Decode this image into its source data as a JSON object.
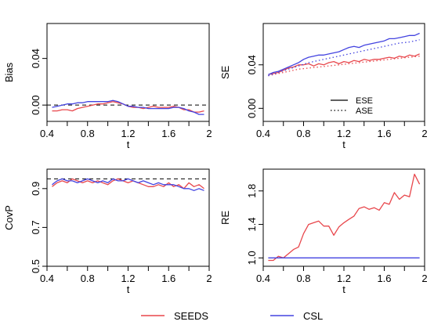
{
  "colors": {
    "SEEDS": "#e8474c",
    "CSL": "#4343e0",
    "reference": "#000000"
  },
  "legend": {
    "entries": [
      {
        "name": "SEEDS",
        "color": "#e8474c",
        "style": "solid"
      },
      {
        "name": "CSL",
        "color": "#4343e0",
        "style": "solid"
      }
    ],
    "placement": "bottom"
  },
  "chart_data": [
    {
      "type": "line",
      "id": "bias",
      "xlabel": "t",
      "ylabel": "Bias",
      "xlim": [
        0.4,
        2.0
      ],
      "ylim": [
        -0.014,
        0.07
      ],
      "xticks": [
        0.4,
        0.8,
        1.2,
        1.6,
        2.0
      ],
      "xtick_labels": [
        "0.4",
        "0.8",
        "1.2",
        "1.6",
        "2"
      ],
      "yticks": [
        0.0,
        0.04
      ],
      "ytick_labels": [
        "0.00",
        "0.04"
      ],
      "reference_lines": [
        {
          "y": 0.0,
          "style": "dashed"
        }
      ],
      "series": [
        {
          "name": "SEEDS",
          "x": [
            0.45,
            0.5,
            0.55,
            0.6,
            0.65,
            0.7,
            0.75,
            0.8,
            0.85,
            0.9,
            0.95,
            1.0,
            1.05,
            1.1,
            1.15,
            1.2,
            1.25,
            1.3,
            1.35,
            1.4,
            1.45,
            1.5,
            1.55,
            1.6,
            1.65,
            1.7,
            1.75,
            1.8,
            1.85,
            1.9,
            1.95
          ],
          "y": [
            -0.005,
            -0.005,
            -0.004,
            -0.004,
            -0.005,
            -0.003,
            -0.002,
            -0.001,
            0.0,
            0.001,
            0.001,
            0.002,
            0.003,
            0.002,
            0.001,
            -0.001,
            -0.002,
            -0.002,
            -0.003,
            -0.002,
            -0.001,
            -0.002,
            -0.002,
            -0.002,
            -0.001,
            -0.002,
            -0.004,
            -0.004,
            -0.006,
            -0.006,
            -0.005
          ]
        },
        {
          "name": "CSL",
          "x": [
            0.45,
            0.5,
            0.55,
            0.6,
            0.65,
            0.7,
            0.75,
            0.8,
            0.85,
            0.9,
            0.95,
            1.0,
            1.05,
            1.1,
            1.15,
            1.2,
            1.25,
            1.3,
            1.35,
            1.4,
            1.45,
            1.5,
            1.55,
            1.6,
            1.65,
            1.7,
            1.75,
            1.8,
            1.85,
            1.9,
            1.95
          ],
          "y": [
            -0.002,
            -0.001,
            0.0,
            0.001,
            0.001,
            0.002,
            0.002,
            0.003,
            0.003,
            0.003,
            0.003,
            0.003,
            0.004,
            0.003,
            0.001,
            -0.001,
            -0.001,
            -0.002,
            -0.002,
            -0.003,
            -0.003,
            -0.003,
            -0.003,
            -0.003,
            -0.002,
            -0.002,
            -0.003,
            -0.005,
            -0.006,
            -0.008,
            -0.008
          ]
        }
      ]
    },
    {
      "type": "line",
      "id": "se",
      "xlabel": "t",
      "ylabel": "SE",
      "xlim": [
        0.4,
        2.0
      ],
      "ylim": [
        -0.012,
        0.078
      ],
      "xticks": [
        0.4,
        0.8,
        1.2,
        1.6,
        2.0
      ],
      "xtick_labels": [
        "0.4",
        "0.8",
        "1.2",
        "1.6",
        "2"
      ],
      "yticks": [
        0.0,
        0.04
      ],
      "ytick_labels": [
        "0.00",
        "0.04"
      ],
      "legend": {
        "entries": [
          {
            "name": "ESE",
            "style": "solid"
          },
          {
            "name": "ASE",
            "style": "dotted"
          }
        ],
        "placement": "bottom-right"
      },
      "series": [
        {
          "name": "SEEDS ESE",
          "style": "solid",
          "color": "#e8474c",
          "x": [
            0.45,
            0.5,
            0.55,
            0.6,
            0.65,
            0.7,
            0.75,
            0.8,
            0.85,
            0.9,
            0.95,
            1.0,
            1.05,
            1.1,
            1.15,
            1.2,
            1.25,
            1.3,
            1.35,
            1.4,
            1.45,
            1.5,
            1.55,
            1.6,
            1.65,
            1.7,
            1.75,
            1.8,
            1.85,
            1.9,
            1.95
          ],
          "y": [
            0.031,
            0.032,
            0.033,
            0.035,
            0.037,
            0.038,
            0.04,
            0.04,
            0.041,
            0.039,
            0.041,
            0.04,
            0.042,
            0.043,
            0.041,
            0.043,
            0.042,
            0.044,
            0.043,
            0.045,
            0.044,
            0.045,
            0.045,
            0.046,
            0.047,
            0.046,
            0.048,
            0.047,
            0.049,
            0.048,
            0.05
          ]
        },
        {
          "name": "CSL ESE",
          "style": "solid",
          "color": "#4343e0",
          "x": [
            0.45,
            0.5,
            0.55,
            0.6,
            0.65,
            0.7,
            0.75,
            0.8,
            0.85,
            0.9,
            0.95,
            1.0,
            1.05,
            1.1,
            1.15,
            1.2,
            1.25,
            1.3,
            1.35,
            1.4,
            1.45,
            1.5,
            1.55,
            1.6,
            1.65,
            1.7,
            1.75,
            1.8,
            1.85,
            1.9,
            1.95
          ],
          "y": [
            0.031,
            0.033,
            0.034,
            0.036,
            0.038,
            0.04,
            0.042,
            0.045,
            0.047,
            0.048,
            0.049,
            0.049,
            0.05,
            0.051,
            0.052,
            0.054,
            0.056,
            0.057,
            0.056,
            0.058,
            0.059,
            0.06,
            0.061,
            0.062,
            0.064,
            0.064,
            0.065,
            0.066,
            0.067,
            0.067,
            0.069
          ]
        },
        {
          "name": "SEEDS ASE",
          "style": "dotted",
          "color": "#e8474c",
          "x": [
            0.45,
            0.55,
            0.65,
            0.75,
            0.85,
            0.95,
            1.05,
            1.15,
            1.25,
            1.35,
            1.45,
            1.55,
            1.65,
            1.75,
            1.85,
            1.95
          ],
          "y": [
            0.03,
            0.032,
            0.034,
            0.036,
            0.037,
            0.038,
            0.039,
            0.04,
            0.041,
            0.042,
            0.043,
            0.044,
            0.045,
            0.046,
            0.047,
            0.048
          ]
        },
        {
          "name": "CSL ASE",
          "style": "dotted",
          "color": "#4343e0",
          "x": [
            0.45,
            0.55,
            0.65,
            0.75,
            0.85,
            0.95,
            1.05,
            1.15,
            1.25,
            1.35,
            1.45,
            1.55,
            1.65,
            1.75,
            1.85,
            1.95
          ],
          "y": [
            0.03,
            0.033,
            0.036,
            0.039,
            0.042,
            0.044,
            0.046,
            0.048,
            0.05,
            0.052,
            0.054,
            0.056,
            0.058,
            0.06,
            0.061,
            0.063
          ]
        }
      ]
    },
    {
      "type": "line",
      "id": "covp",
      "xlabel": "t",
      "ylabel": "CovP",
      "xlim": [
        0.4,
        2.0
      ],
      "ylim": [
        0.5,
        1.0
      ],
      "xticks": [
        0.4,
        0.8,
        1.2,
        1.6,
        2.0
      ],
      "xtick_labels": [
        "0.4",
        "0.8",
        "1.2",
        "1.6",
        "2"
      ],
      "yticks": [
        0.5,
        0.7,
        0.9
      ],
      "ytick_labels": [
        "0.5",
        "0.7",
        "0.9"
      ],
      "reference_lines": [
        {
          "y": 0.95,
          "style": "dashed"
        }
      ],
      "series": [
        {
          "name": "SEEDS",
          "x": [
            0.45,
            0.5,
            0.55,
            0.6,
            0.65,
            0.7,
            0.75,
            0.8,
            0.85,
            0.9,
            0.95,
            1.0,
            1.05,
            1.1,
            1.15,
            1.2,
            1.25,
            1.3,
            1.35,
            1.4,
            1.45,
            1.5,
            1.55,
            1.6,
            1.65,
            1.7,
            1.75,
            1.8,
            1.85,
            1.9,
            1.95
          ],
          "y": [
            0.91,
            0.93,
            0.94,
            0.93,
            0.95,
            0.94,
            0.93,
            0.94,
            0.93,
            0.94,
            0.93,
            0.92,
            0.94,
            0.95,
            0.94,
            0.93,
            0.94,
            0.93,
            0.92,
            0.91,
            0.91,
            0.92,
            0.91,
            0.93,
            0.91,
            0.92,
            0.9,
            0.93,
            0.91,
            0.92,
            0.9
          ]
        },
        {
          "name": "CSL",
          "x": [
            0.45,
            0.5,
            0.55,
            0.6,
            0.65,
            0.7,
            0.75,
            0.8,
            0.85,
            0.9,
            0.95,
            1.0,
            1.05,
            1.1,
            1.15,
            1.2,
            1.25,
            1.3,
            1.35,
            1.4,
            1.45,
            1.5,
            1.55,
            1.6,
            1.65,
            1.7,
            1.75,
            1.8,
            1.85,
            1.9,
            1.95
          ],
          "y": [
            0.92,
            0.94,
            0.95,
            0.94,
            0.94,
            0.93,
            0.94,
            0.95,
            0.94,
            0.93,
            0.94,
            0.93,
            0.95,
            0.94,
            0.94,
            0.95,
            0.94,
            0.93,
            0.94,
            0.93,
            0.92,
            0.93,
            0.92,
            0.92,
            0.92,
            0.91,
            0.9,
            0.9,
            0.89,
            0.9,
            0.89
          ]
        }
      ]
    },
    {
      "type": "line",
      "id": "re",
      "xlabel": "t",
      "ylabel": "RE",
      "xlim": [
        0.4,
        2.0
      ],
      "ylim": [
        0.9,
        2.06
      ],
      "xticks": [
        0.4,
        0.8,
        1.2,
        1.6,
        2.0
      ],
      "xtick_labels": [
        "0.4",
        "0.8",
        "1.2",
        "1.6",
        "2"
      ],
      "yticks": [
        1.0,
        1.4,
        1.8
      ],
      "ytick_labels": [
        "1.0",
        "1.4",
        "1.8"
      ],
      "series": [
        {
          "name": "SEEDS",
          "x": [
            0.45,
            0.5,
            0.55,
            0.6,
            0.65,
            0.7,
            0.75,
            0.8,
            0.85,
            0.9,
            0.95,
            1.0,
            1.05,
            1.1,
            1.15,
            1.2,
            1.25,
            1.3,
            1.35,
            1.4,
            1.45,
            1.5,
            1.55,
            1.6,
            1.65,
            1.7,
            1.75,
            1.8,
            1.85,
            1.9,
            1.95
          ],
          "y": [
            0.97,
            0.97,
            1.02,
            1.0,
            1.05,
            1.1,
            1.13,
            1.29,
            1.4,
            1.42,
            1.44,
            1.38,
            1.38,
            1.27,
            1.37,
            1.42,
            1.46,
            1.5,
            1.59,
            1.61,
            1.58,
            1.6,
            1.57,
            1.66,
            1.64,
            1.78,
            1.7,
            1.75,
            1.73,
            2.0,
            1.88
          ]
        },
        {
          "name": "CSL",
          "x": [
            0.45,
            1.95
          ],
          "y": [
            1.0,
            1.0
          ]
        }
      ]
    }
  ]
}
